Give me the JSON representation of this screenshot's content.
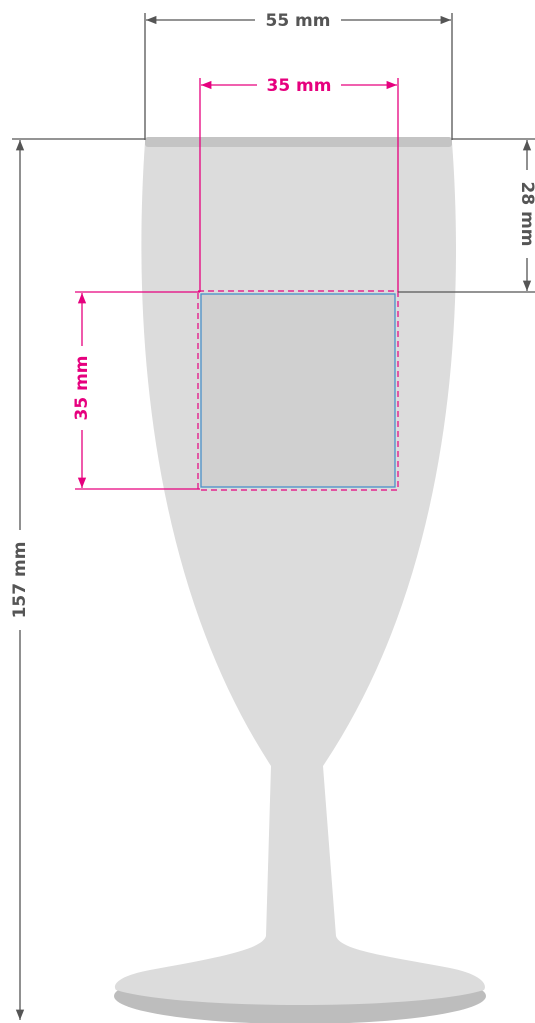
{
  "dimensions": {
    "rim_width": "55 mm",
    "print_width": "35 mm",
    "print_top_offset": "28 mm",
    "print_height": "35 mm",
    "total_height": "157 mm"
  }
}
